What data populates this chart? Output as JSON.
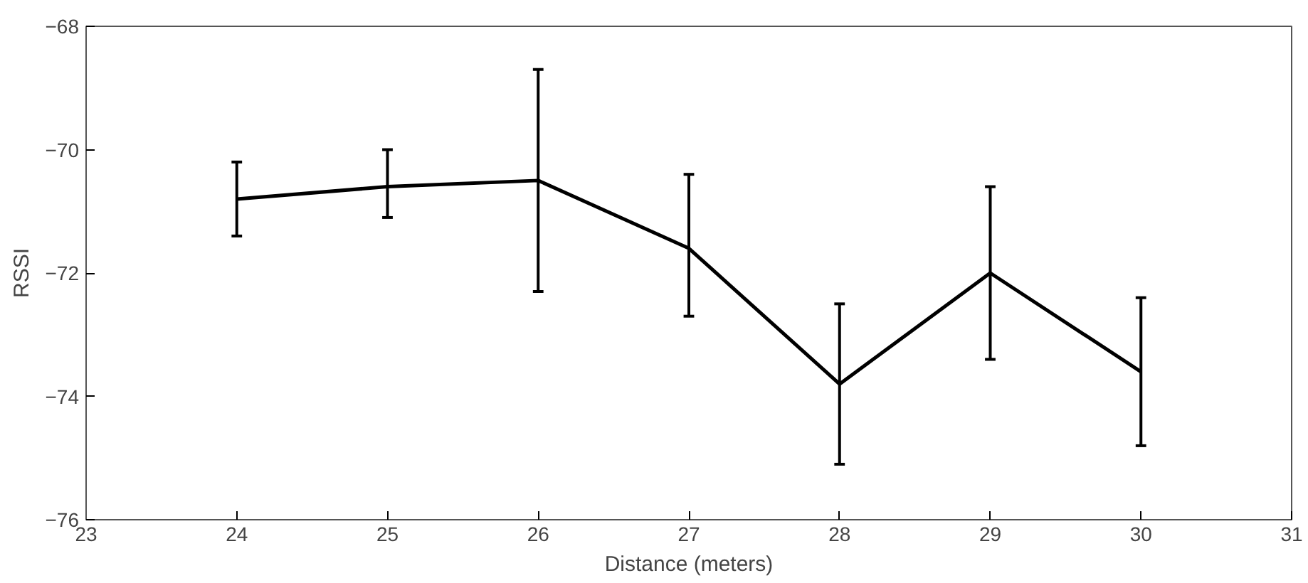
{
  "chart_data": {
    "type": "line",
    "xlabel": "Distance (meters)",
    "ylabel": "RSSI",
    "x": [
      24,
      25,
      26,
      27,
      28,
      29,
      30
    ],
    "series": [
      {
        "color": "#000000",
        "values": [
          -70.8,
          -70.6,
          -70.5,
          -71.6,
          -73.8,
          -72.0,
          -73.6
        ],
        "errors": [
          [
            -71.4,
            -70.2
          ],
          [
            -71.1,
            -70.0
          ],
          [
            -72.3,
            -68.7
          ],
          [
            -72.7,
            -70.4
          ],
          [
            -75.1,
            -72.5
          ],
          [
            -73.4,
            -70.6
          ],
          [
            -74.8,
            -72.4
          ]
        ]
      }
    ],
    "xlim": [
      23,
      31
    ],
    "xticks": [
      23,
      24,
      25,
      26,
      27,
      28,
      29,
      30,
      31
    ],
    "ylim": [
      -76,
      -68
    ],
    "yticks": [
      -76,
      -74,
      -72,
      -70,
      -68
    ],
    "grid": false,
    "marker": "none",
    "line_style": "solid"
  }
}
